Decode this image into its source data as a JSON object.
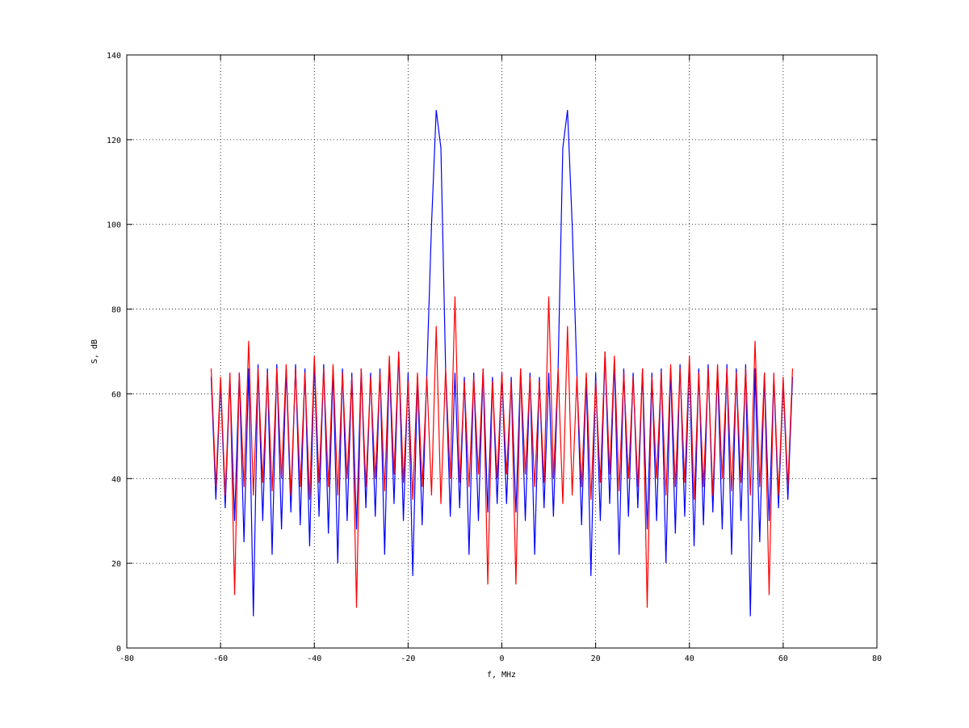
{
  "chart_data": {
    "type": "line",
    "xlabel": "f, MHz",
    "ylabel": "S, dB",
    "xlim": [
      -80,
      80
    ],
    "xticks": [
      -80,
      -60,
      -40,
      -20,
      0,
      20,
      40,
      60,
      80
    ],
    "ylim": [
      0,
      140
    ],
    "yticks": [
      0,
      20,
      40,
      60,
      80,
      100,
      120,
      140
    ],
    "grid": true,
    "x": [
      -62,
      -61,
      -60,
      -59,
      -58,
      -57,
      -56,
      -55,
      -54,
      -53,
      -52,
      -51,
      -50,
      -49,
      -48,
      -47,
      -46,
      -45,
      -44,
      -43,
      -42,
      -41,
      -40,
      -39,
      -38,
      -37,
      -36,
      -35,
      -34,
      -33,
      -32,
      -31,
      -30,
      -29,
      -28,
      -27,
      -26,
      -25,
      -24,
      -23,
      -22,
      -21,
      -20,
      -19,
      -18,
      -17,
      -16,
      -15,
      -14,
      -13,
      -12,
      -11,
      -10,
      -9,
      -8,
      -7,
      -6,
      -5,
      -4,
      -3,
      -2,
      -1,
      0,
      1,
      2,
      3,
      4,
      5,
      6,
      7,
      8,
      9,
      10,
      11,
      12,
      13,
      14,
      15,
      16,
      17,
      18,
      19,
      20,
      21,
      22,
      23,
      24,
      25,
      26,
      27,
      28,
      29,
      30,
      31,
      32,
      33,
      34,
      35,
      36,
      37,
      38,
      39,
      40,
      41,
      42,
      43,
      44,
      45,
      46,
      47,
      48,
      49,
      50,
      51,
      52,
      53,
      54,
      55,
      56,
      57,
      58,
      59,
      60,
      61,
      62
    ],
    "series": [
      {
        "color": "#0000ff",
        "values": [
          64,
          35,
          63,
          33,
          64,
          30,
          65,
          25,
          66,
          7.5,
          67,
          30,
          66,
          22,
          67,
          28,
          66,
          32,
          67,
          29,
          66,
          24,
          68,
          31,
          67,
          27,
          66,
          20,
          66,
          30,
          65,
          28,
          66,
          33,
          65,
          31,
          66,
          22,
          68,
          34,
          70,
          30,
          65,
          17,
          64,
          29,
          65,
          100,
          127,
          118,
          66,
          31,
          65,
          33,
          64,
          22,
          65,
          30,
          66,
          32,
          64,
          34,
          65,
          34,
          64,
          32,
          66,
          30,
          65,
          22,
          64,
          33,
          65,
          31,
          66,
          118,
          127,
          100,
          65,
          29,
          64,
          17,
          65,
          30,
          70,
          34,
          68,
          22,
          66,
          31,
          65,
          33,
          66,
          28,
          65,
          30,
          66,
          20,
          66,
          27,
          67,
          31,
          68,
          24,
          66,
          29,
          67,
          32,
          66,
          28,
          67,
          22,
          66,
          30,
          67,
          7.5,
          66,
          25,
          65,
          30,
          64,
          33,
          63,
          35,
          64
        ]
      },
      {
        "color": "#ff0000",
        "values": [
          66,
          38,
          64,
          36,
          65,
          12.5,
          65,
          38,
          72.5,
          36,
          66,
          39,
          65,
          37,
          66,
          40,
          67,
          36,
          66,
          38,
          65,
          35,
          69,
          39,
          66,
          38,
          67,
          36,
          65,
          40,
          64,
          9.5,
          66,
          38,
          64,
          40,
          65,
          37,
          69,
          41,
          70,
          39,
          63,
          35,
          65,
          38,
          64,
          36,
          76,
          34,
          66,
          40,
          83,
          39,
          63,
          38,
          64,
          41,
          66,
          15,
          63,
          40,
          65,
          41,
          63,
          15,
          66,
          41,
          64,
          38,
          63,
          39,
          83,
          40,
          66,
          34,
          76,
          36,
          64,
          38,
          65,
          35,
          63,
          39,
          70,
          41,
          69,
          37,
          65,
          40,
          64,
          38,
          66,
          9.5,
          64,
          40,
          65,
          36,
          67,
          38,
          66,
          39,
          69,
          35,
          65,
          38,
          66,
          36,
          67,
          40,
          66,
          37,
          65,
          39,
          66,
          36,
          72.5,
          38,
          65,
          12.5,
          65,
          36,
          64,
          38,
          66
        ]
      }
    ]
  }
}
